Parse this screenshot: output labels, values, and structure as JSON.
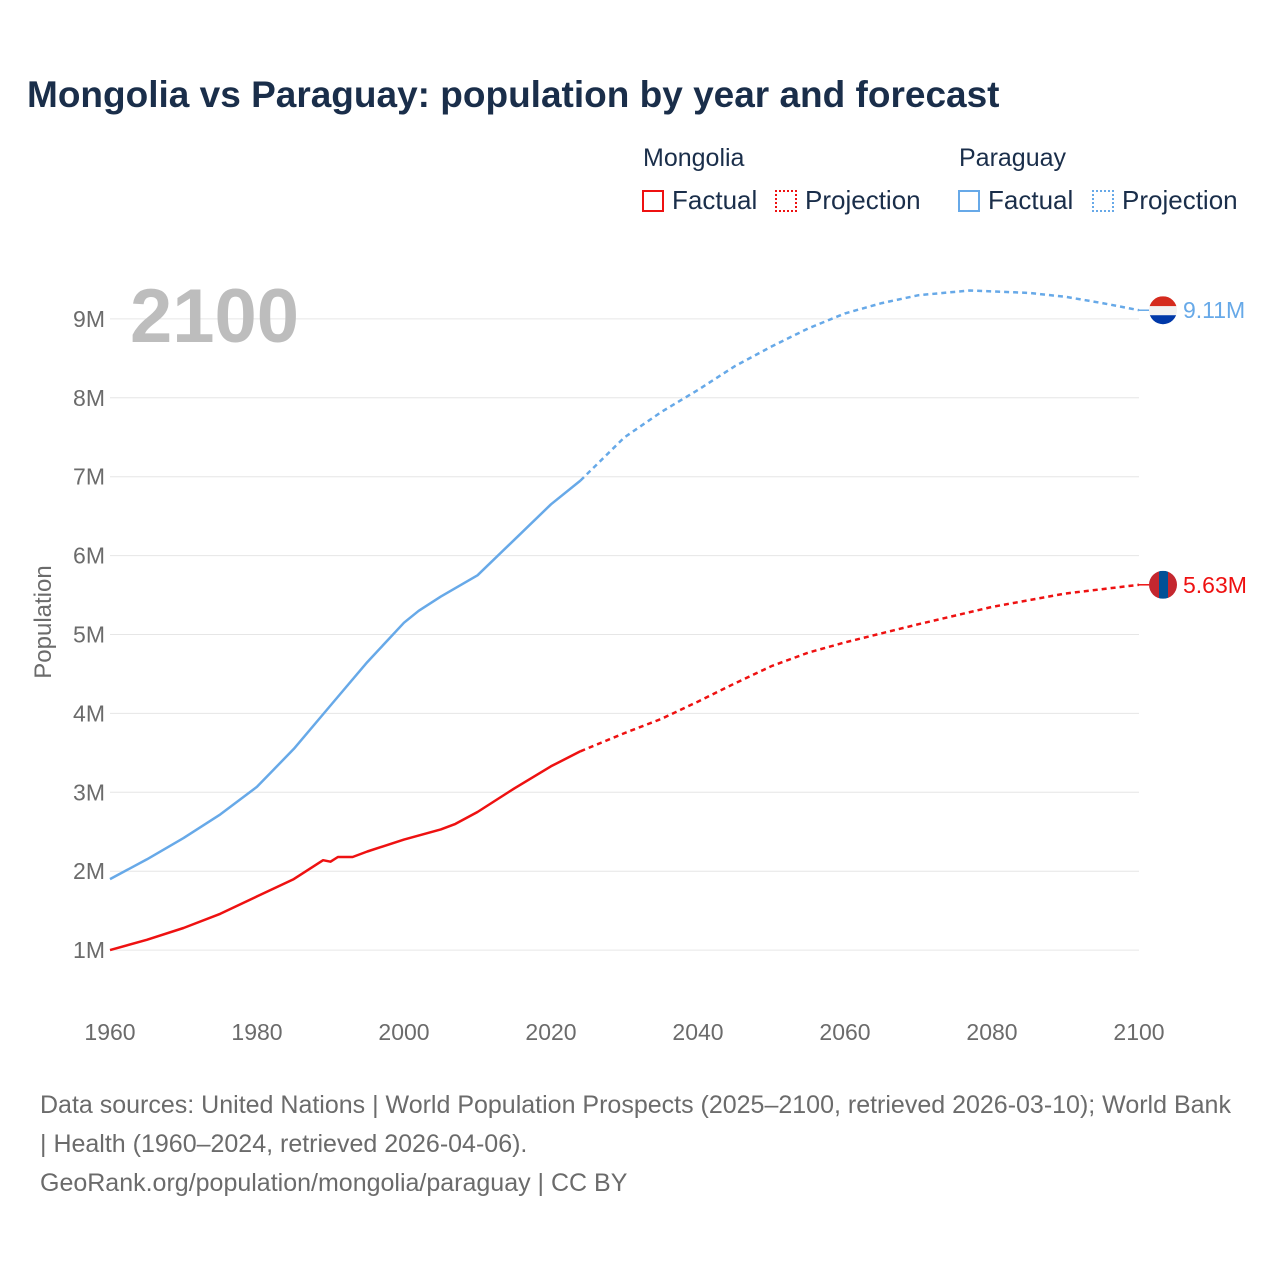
{
  "title": "Mongolia vs Paraguay: population by year and forecast",
  "legend": {
    "groups": [
      {
        "name": "Mongolia",
        "factual": "Factual",
        "projection": "Projection",
        "color": "#ee1111"
      },
      {
        "name": "Paraguay",
        "factual": "Factual",
        "projection": "Projection",
        "color": "#67a9e8"
      }
    ]
  },
  "year_overlay": "2100",
  "footer": {
    "sources": "Data sources: United Nations | World Population Prospects (2025–2100, retrieved 2026-03-10); World Bank | Health (1960–2024, retrieved 2026-04-06).",
    "link": "GeoRank.org/population/mongolia/paraguay | CC BY"
  },
  "chart_data": {
    "type": "line",
    "title": "Mongolia vs Paraguay: population by year and forecast",
    "xlabel": "",
    "ylabel": "Population",
    "xlim": [
      1960,
      2100
    ],
    "ylim": [
      0,
      9.4
    ],
    "x_ticks": [
      "1960",
      "1980",
      "2000",
      "2020",
      "2040",
      "2060",
      "2080",
      "2100"
    ],
    "y_ticks": [
      {
        "v": 1,
        "label": "1M"
      },
      {
        "v": 2,
        "label": "2M"
      },
      {
        "v": 3,
        "label": "3M"
      },
      {
        "v": 4,
        "label": "4M"
      },
      {
        "v": 5,
        "label": "5M"
      },
      {
        "v": 6,
        "label": "6M"
      },
      {
        "v": 7,
        "label": "7M"
      },
      {
        "v": 8,
        "label": "8M"
      },
      {
        "v": 9,
        "label": "9M"
      }
    ],
    "units": "millions",
    "series": [
      {
        "name": "Mongolia",
        "color": "#ee1111",
        "end_label": "5.63M",
        "factual": [
          [
            1960,
            1.0
          ],
          [
            1965,
            1.13
          ],
          [
            1970,
            1.28
          ],
          [
            1975,
            1.46
          ],
          [
            1980,
            1.68
          ],
          [
            1985,
            1.9
          ],
          [
            1989,
            2.14
          ],
          [
            1990,
            2.12
          ],
          [
            1991,
            2.18
          ],
          [
            1993,
            2.18
          ],
          [
            1995,
            2.25
          ],
          [
            2000,
            2.4
          ],
          [
            2005,
            2.53
          ],
          [
            2007,
            2.6
          ],
          [
            2010,
            2.75
          ],
          [
            2015,
            3.05
          ],
          [
            2020,
            3.33
          ],
          [
            2024,
            3.52
          ]
        ],
        "projection": [
          [
            2024,
            3.52
          ],
          [
            2030,
            3.75
          ],
          [
            2035,
            3.93
          ],
          [
            2040,
            4.15
          ],
          [
            2045,
            4.38
          ],
          [
            2050,
            4.6
          ],
          [
            2055,
            4.77
          ],
          [
            2060,
            4.9
          ],
          [
            2070,
            5.13
          ],
          [
            2080,
            5.35
          ],
          [
            2090,
            5.52
          ],
          [
            2100,
            5.63
          ]
        ]
      },
      {
        "name": "Paraguay",
        "color": "#67a9e8",
        "end_label": "9.11M",
        "factual": [
          [
            1960,
            1.9
          ],
          [
            1965,
            2.15
          ],
          [
            1970,
            2.42
          ],
          [
            1975,
            2.72
          ],
          [
            1980,
            3.07
          ],
          [
            1985,
            3.55
          ],
          [
            1990,
            4.1
          ],
          [
            1995,
            4.65
          ],
          [
            2000,
            5.15
          ],
          [
            2002,
            5.3
          ],
          [
            2005,
            5.48
          ],
          [
            2010,
            5.75
          ],
          [
            2015,
            6.2
          ],
          [
            2020,
            6.65
          ],
          [
            2024,
            6.95
          ]
        ],
        "projection": [
          [
            2024,
            6.95
          ],
          [
            2030,
            7.5
          ],
          [
            2035,
            7.82
          ],
          [
            2040,
            8.1
          ],
          [
            2045,
            8.4
          ],
          [
            2050,
            8.65
          ],
          [
            2055,
            8.88
          ],
          [
            2060,
            9.07
          ],
          [
            2065,
            9.2
          ],
          [
            2070,
            9.3
          ],
          [
            2077,
            9.36
          ],
          [
            2085,
            9.33
          ],
          [
            2090,
            9.28
          ],
          [
            2095,
            9.2
          ],
          [
            2100,
            9.11
          ]
        ]
      }
    ]
  }
}
